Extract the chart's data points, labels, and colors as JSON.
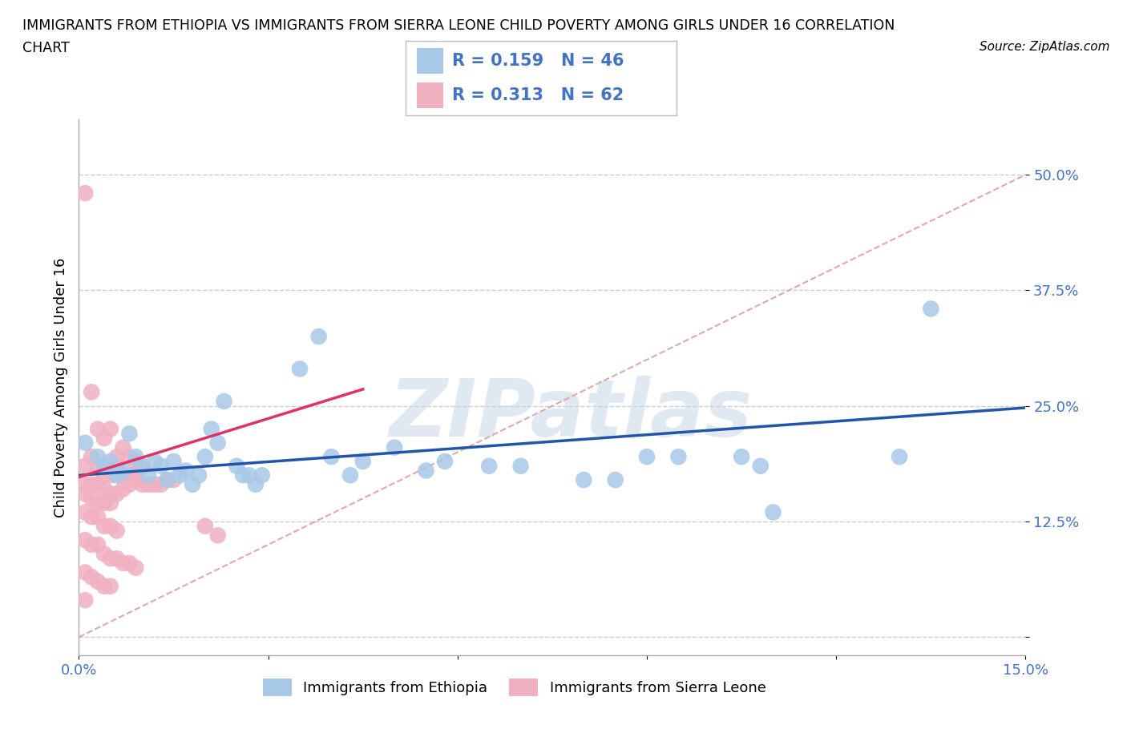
{
  "title_line1": "IMMIGRANTS FROM ETHIOPIA VS IMMIGRANTS FROM SIERRA LEONE CHILD POVERTY AMONG GIRLS UNDER 16 CORRELATION",
  "title_line2": "CHART",
  "source": "Source: ZipAtlas.com",
  "ylabel": "Child Poverty Among Girls Under 16",
  "xlabel_ethiopia": "Immigrants from Ethiopia",
  "xlabel_sierraleone": "Immigrants from Sierra Leone",
  "xlim": [
    0.0,
    0.15
  ],
  "ylim": [
    -0.02,
    0.56
  ],
  "yticks": [
    0.0,
    0.125,
    0.25,
    0.375,
    0.5
  ],
  "ytick_labels": [
    "",
    "12.5%",
    "25.0%",
    "37.5%",
    "50.0%"
  ],
  "xticks": [
    0.0,
    0.03,
    0.06,
    0.09,
    0.12,
    0.15
  ],
  "xtick_labels": [
    "0.0%",
    "",
    "",
    "",
    "",
    "15.0%"
  ],
  "ethiopia_color": "#a8c8e8",
  "sierraleone_color": "#f0b0c0",
  "ethiopia_line_color": "#2255aa",
  "sierraleone_line_color": "#dd3366",
  "diagonal_color": "#ddaaaa",
  "R_ethiopia": 0.159,
  "N_ethiopia": 46,
  "R_sierraleone": 0.313,
  "N_sierraleone": 62,
  "watermark": "ZIPatlas",
  "background_color": "#ffffff",
  "ethiopia_trendline": [
    [
      0.0,
      0.175
    ],
    [
      0.15,
      0.248
    ]
  ],
  "sierraleone_trendline": [
    [
      0.0,
      0.173
    ],
    [
      0.045,
      0.268
    ]
  ],
  "diagonal_line": [
    [
      0.0,
      0.0
    ],
    [
      0.15,
      0.5
    ]
  ],
  "ethiopia_scatter": [
    [
      0.001,
      0.21
    ],
    [
      0.003,
      0.195
    ],
    [
      0.004,
      0.185
    ],
    [
      0.005,
      0.19
    ],
    [
      0.006,
      0.175
    ],
    [
      0.007,
      0.18
    ],
    [
      0.008,
      0.22
    ],
    [
      0.009,
      0.195
    ],
    [
      0.01,
      0.185
    ],
    [
      0.011,
      0.175
    ],
    [
      0.012,
      0.19
    ],
    [
      0.013,
      0.185
    ],
    [
      0.014,
      0.17
    ],
    [
      0.015,
      0.19
    ],
    [
      0.016,
      0.175
    ],
    [
      0.017,
      0.18
    ],
    [
      0.018,
      0.165
    ],
    [
      0.019,
      0.175
    ],
    [
      0.02,
      0.195
    ],
    [
      0.021,
      0.225
    ],
    [
      0.022,
      0.21
    ],
    [
      0.023,
      0.255
    ],
    [
      0.025,
      0.185
    ],
    [
      0.026,
      0.175
    ],
    [
      0.027,
      0.175
    ],
    [
      0.028,
      0.165
    ],
    [
      0.029,
      0.175
    ],
    [
      0.035,
      0.29
    ],
    [
      0.038,
      0.325
    ],
    [
      0.04,
      0.195
    ],
    [
      0.043,
      0.175
    ],
    [
      0.045,
      0.19
    ],
    [
      0.05,
      0.205
    ],
    [
      0.055,
      0.18
    ],
    [
      0.058,
      0.19
    ],
    [
      0.065,
      0.185
    ],
    [
      0.07,
      0.185
    ],
    [
      0.08,
      0.17
    ],
    [
      0.085,
      0.17
    ],
    [
      0.09,
      0.195
    ],
    [
      0.095,
      0.195
    ],
    [
      0.105,
      0.195
    ],
    [
      0.108,
      0.185
    ],
    [
      0.11,
      0.135
    ],
    [
      0.13,
      0.195
    ],
    [
      0.135,
      0.355
    ]
  ],
  "sierraleone_scatter": [
    [
      0.001,
      0.48
    ],
    [
      0.002,
      0.265
    ],
    [
      0.003,
      0.225
    ],
    [
      0.004,
      0.215
    ],
    [
      0.005,
      0.225
    ],
    [
      0.006,
      0.195
    ],
    [
      0.007,
      0.205
    ],
    [
      0.008,
      0.195
    ],
    [
      0.009,
      0.19
    ],
    [
      0.01,
      0.185
    ],
    [
      0.001,
      0.185
    ],
    [
      0.002,
      0.195
    ],
    [
      0.003,
      0.185
    ],
    [
      0.004,
      0.175
    ],
    [
      0.005,
      0.175
    ],
    [
      0.006,
      0.185
    ],
    [
      0.007,
      0.175
    ],
    [
      0.008,
      0.175
    ],
    [
      0.009,
      0.17
    ],
    [
      0.001,
      0.165
    ],
    [
      0.002,
      0.165
    ],
    [
      0.003,
      0.165
    ],
    [
      0.004,
      0.16
    ],
    [
      0.005,
      0.155
    ],
    [
      0.006,
      0.155
    ],
    [
      0.007,
      0.16
    ],
    [
      0.008,
      0.165
    ],
    [
      0.009,
      0.175
    ],
    [
      0.01,
      0.165
    ],
    [
      0.011,
      0.165
    ],
    [
      0.012,
      0.165
    ],
    [
      0.013,
      0.165
    ],
    [
      0.014,
      0.17
    ],
    [
      0.015,
      0.17
    ],
    [
      0.001,
      0.155
    ],
    [
      0.002,
      0.15
    ],
    [
      0.003,
      0.145
    ],
    [
      0.004,
      0.145
    ],
    [
      0.005,
      0.145
    ],
    [
      0.001,
      0.135
    ],
    [
      0.002,
      0.13
    ],
    [
      0.003,
      0.13
    ],
    [
      0.004,
      0.12
    ],
    [
      0.005,
      0.12
    ],
    [
      0.006,
      0.115
    ],
    [
      0.001,
      0.105
    ],
    [
      0.002,
      0.1
    ],
    [
      0.003,
      0.1
    ],
    [
      0.004,
      0.09
    ],
    [
      0.005,
      0.085
    ],
    [
      0.006,
      0.085
    ],
    [
      0.007,
      0.08
    ],
    [
      0.008,
      0.08
    ],
    [
      0.009,
      0.075
    ],
    [
      0.001,
      0.07
    ],
    [
      0.002,
      0.065
    ],
    [
      0.003,
      0.06
    ],
    [
      0.004,
      0.055
    ],
    [
      0.005,
      0.055
    ],
    [
      0.02,
      0.12
    ],
    [
      0.022,
      0.11
    ],
    [
      0.001,
      0.04
    ]
  ]
}
